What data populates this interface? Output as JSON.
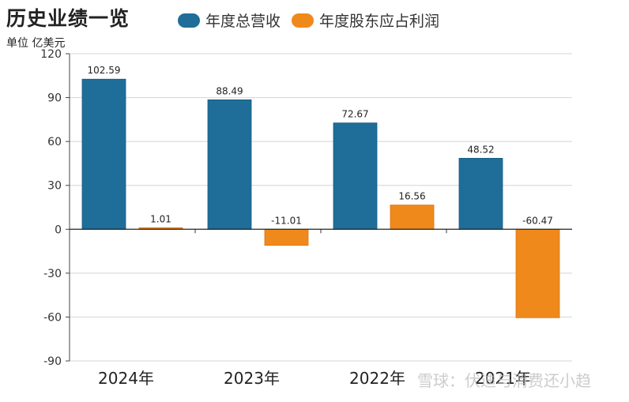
{
  "title": "历史业绩一览",
  "unit": "单位 亿美元",
  "legend": [
    {
      "label": "年度总营收",
      "color": "#1f6e99"
    },
    {
      "label": "年度股东应占利润",
      "color": "#f0891c"
    }
  ],
  "watermark": "雪球：伏迪与消费还小趋",
  "chart_data": {
    "type": "bar",
    "categories": [
      "2024年",
      "2023年",
      "2022年",
      "2021年"
    ],
    "series": [
      {
        "name": "年度总营收",
        "values": [
          102.59,
          88.49,
          72.67,
          48.52
        ],
        "color": "#1f6e99"
      },
      {
        "name": "年度股东应占利润",
        "values": [
          1.01,
          -11.01,
          16.56,
          -60.47
        ],
        "color": "#f0891c"
      }
    ],
    "data_labels": [
      [
        "102.59",
        "88.49",
        "72.67",
        "48.52"
      ],
      [
        "1.01",
        "-11.01",
        "16.56",
        "-60.47"
      ]
    ],
    "yticks": [
      120,
      90,
      60,
      30,
      0,
      -30,
      -60,
      -90
    ],
    "ylim": [
      -90,
      120
    ],
    "grid": true,
    "legend_position": "top"
  }
}
